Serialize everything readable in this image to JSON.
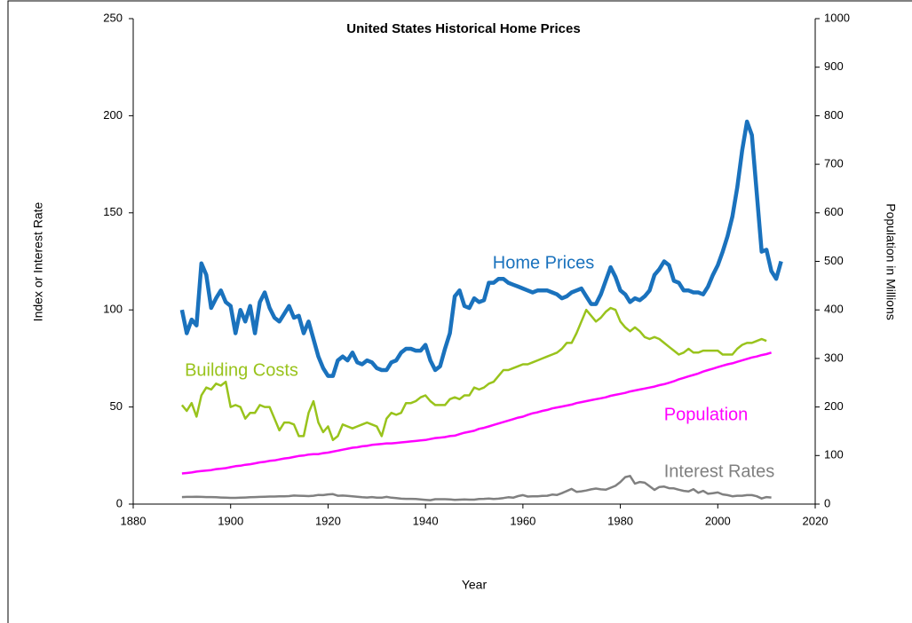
{
  "chart_data": {
    "type": "line",
    "title": "United States Historical Home Prices",
    "x_label": "Year",
    "y_label": "Index or Interest Rate",
    "y2_label": "Population in Millions",
    "xlim": [
      1880,
      2020
    ],
    "xticks": [
      1880,
      1900,
      1920,
      1940,
      1960,
      1980,
      2000,
      2020
    ],
    "ylim": [
      0,
      250
    ],
    "yticks": [
      0,
      50,
      100,
      150,
      200,
      250
    ],
    "y2lim": [
      0,
      1000
    ],
    "y2ticks": [
      0,
      100,
      200,
      300,
      400,
      500,
      600,
      700,
      800,
      900,
      1000
    ],
    "x": [
      1890,
      1891,
      1892,
      1893,
      1894,
      1895,
      1896,
      1897,
      1898,
      1899,
      1900,
      1901,
      1902,
      1903,
      1904,
      1905,
      1906,
      1907,
      1908,
      1909,
      1910,
      1911,
      1912,
      1913,
      1914,
      1915,
      1916,
      1917,
      1918,
      1919,
      1920,
      1921,
      1922,
      1923,
      1924,
      1925,
      1926,
      1927,
      1928,
      1929,
      1930,
      1931,
      1932,
      1933,
      1934,
      1935,
      1936,
      1937,
      1938,
      1939,
      1940,
      1941,
      1942,
      1943,
      1944,
      1945,
      1946,
      1947,
      1948,
      1949,
      1950,
      1951,
      1952,
      1953,
      1954,
      1955,
      1956,
      1957,
      1958,
      1959,
      1960,
      1961,
      1962,
      1963,
      1964,
      1965,
      1966,
      1967,
      1968,
      1969,
      1970,
      1971,
      1972,
      1973,
      1974,
      1975,
      1976,
      1977,
      1978,
      1979,
      1980,
      1981,
      1982,
      1983,
      1984,
      1985,
      1986,
      1987,
      1988,
      1989,
      1990,
      1991,
      1992,
      1993,
      1994,
      1995,
      1996,
      1997,
      1998,
      1999,
      2000,
      2001,
      2002,
      2003,
      2004,
      2005,
      2006,
      2007,
      2008,
      2009,
      2010,
      2011,
      2012,
      2013
    ],
    "series": [
      {
        "name": "Home Prices",
        "color": "#1a72bd",
        "values": [
          100,
          88,
          95,
          92,
          124,
          118,
          101,
          106,
          110,
          104,
          102,
          88,
          100,
          94,
          102,
          88,
          104,
          109,
          101,
          96,
          94,
          98,
          102,
          96,
          97,
          88,
          94,
          85,
          76,
          70,
          66,
          66,
          74,
          76,
          74,
          78,
          73,
          72,
          74,
          73,
          70,
          69,
          69,
          73,
          74,
          78,
          80,
          80,
          79,
          79,
          82,
          74,
          69,
          71,
          80,
          88,
          107,
          110,
          102,
          101,
          106,
          104,
          105,
          114,
          114,
          116,
          116,
          114,
          113,
          112,
          111,
          110,
          109,
          110,
          110,
          110,
          109,
          108,
          106,
          107,
          109,
          110,
          111,
          107,
          103,
          103,
          108,
          115,
          122,
          117,
          110,
          108,
          104,
          106,
          105,
          107,
          110,
          118,
          121,
          125,
          123,
          115,
          114,
          110,
          110,
          109,
          109,
          108,
          112,
          118,
          123,
          130,
          138,
          148,
          163,
          182,
          197,
          190,
          160,
          130,
          131,
          120,
          116,
          125
        ]
      },
      {
        "name": "Building Costs",
        "color": "#99c31c",
        "values": [
          51,
          48,
          52,
          45,
          56,
          60,
          59,
          62,
          61,
          63,
          50,
          51,
          50,
          44,
          47,
          47,
          51,
          50,
          50,
          44,
          38,
          42,
          42,
          41,
          35,
          35,
          47,
          53,
          42,
          37,
          40,
          33,
          35,
          41,
          40,
          39,
          40,
          41,
          42,
          41,
          40,
          35,
          44,
          47,
          46,
          47,
          52,
          52,
          53,
          55,
          56,
          53,
          51,
          51,
          51,
          54,
          55,
          54,
          56,
          56,
          60,
          59,
          60,
          62,
          63,
          66,
          69,
          69,
          70,
          71,
          72,
          72,
          73,
          74,
          75,
          76,
          77,
          78,
          80,
          83,
          83,
          88,
          94,
          100,
          97,
          94,
          96,
          99,
          101,
          100,
          94,
          91,
          89,
          91,
          89,
          86,
          85,
          86,
          85,
          83,
          81,
          79,
          77,
          78,
          80,
          78,
          78,
          79,
          79,
          79,
          79,
          77,
          77,
          77,
          80,
          82,
          83,
          83,
          84,
          85,
          84,
          null,
          null,
          null
        ]
      },
      {
        "name": "Population",
        "color": "#ff00ff",
        "axis": "y2",
        "values": [
          63,
          64,
          65,
          67,
          68,
          69,
          70,
          72,
          73,
          74,
          76,
          78,
          79,
          81,
          82,
          84,
          86,
          87,
          89,
          90,
          92,
          94,
          95,
          97,
          99,
          100,
          102,
          103,
          103,
          105,
          106,
          108,
          110,
          112,
          114,
          116,
          117,
          119,
          120,
          122,
          123,
          124,
          125,
          125,
          126,
          127,
          128,
          129,
          130,
          131,
          132,
          134,
          136,
          137,
          138,
          140,
          141,
          144,
          147,
          149,
          151,
          155,
          157,
          160,
          163,
          166,
          169,
          172,
          175,
          178,
          180,
          184,
          187,
          189,
          192,
          194,
          197,
          199,
          201,
          203,
          205,
          208,
          210,
          212,
          214,
          216,
          218,
          220,
          223,
          225,
          227,
          229,
          232,
          234,
          236,
          238,
          240,
          242,
          245,
          247,
          250,
          253,
          257,
          260,
          263,
          266,
          269,
          273,
          276,
          279,
          282,
          285,
          288,
          290,
          293,
          296,
          299,
          302,
          304,
          307,
          309,
          312,
          null,
          null
        ]
      },
      {
        "name": "Interest Rates",
        "color": "#808080",
        "values": [
          3.6,
          3.7,
          3.7,
          3.8,
          3.7,
          3.6,
          3.6,
          3.5,
          3.4,
          3.3,
          3.2,
          3.2,
          3.3,
          3.4,
          3.5,
          3.6,
          3.7,
          3.8,
          3.9,
          3.9,
          4.0,
          4.0,
          4.1,
          4.4,
          4.3,
          4.2,
          4.1,
          4.3,
          4.7,
          4.6,
          5.0,
          5.1,
          4.3,
          4.4,
          4.2,
          4.0,
          3.8,
          3.5,
          3.4,
          3.6,
          3.3,
          3.3,
          3.7,
          3.3,
          3.1,
          2.8,
          2.7,
          2.7,
          2.6,
          2.4,
          2.2,
          2.0,
          2.5,
          2.5,
          2.5,
          2.4,
          2.2,
          2.3,
          2.4,
          2.3,
          2.3,
          2.6,
          2.7,
          2.9,
          2.6,
          2.8,
          3.1,
          3.5,
          3.3,
          4.1,
          4.6,
          3.9,
          4.0,
          4.0,
          4.2,
          4.3,
          4.9,
          4.7,
          5.6,
          6.7,
          7.8,
          6.3,
          6.6,
          7.0,
          7.6,
          8.0,
          7.6,
          7.4,
          8.4,
          9.4,
          11.4,
          13.9,
          14.5,
          10.5,
          11.4,
          11.0,
          9.2,
          7.3,
          8.8,
          9.0,
          8.2,
          8.1,
          7.4,
          6.8,
          6.5,
          7.7,
          5.8,
          6.8,
          5.3,
          5.6,
          6.0,
          5.0,
          4.6,
          4.0,
          4.3,
          4.3,
          4.6,
          4.6,
          4.0,
          2.9,
          3.6,
          3.4,
          null,
          null
        ]
      }
    ]
  }
}
